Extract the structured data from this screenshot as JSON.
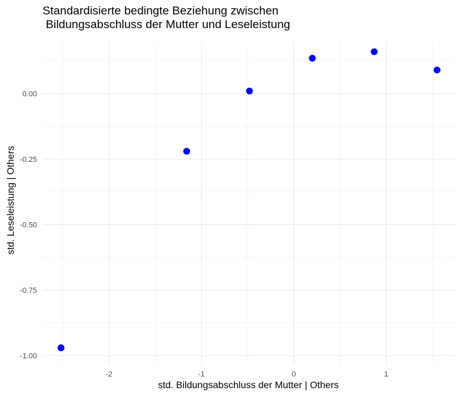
{
  "chart_data": {
    "type": "scatter",
    "title": "Standardisierte bedingte Beziehung zwischen\n Bildungsabschluss der Mutter und Leseleistung",
    "xlabel": "std. Bildungsabschluss der Mutter | Others",
    "ylabel": "std. Leseleistung | Others",
    "xlim": [
      -2.72,
      1.75
    ],
    "ylim": [
      -1.035,
      0.195
    ],
    "x_ticks": [
      -2,
      -1,
      0,
      1
    ],
    "x_tick_labels": [
      "-2",
      "-1",
      "0",
      "1"
    ],
    "y_ticks": [
      -1.0,
      -0.75,
      -0.5,
      -0.25,
      0.0
    ],
    "y_tick_labels": [
      "-1.00",
      "-0.75",
      "-0.50",
      "-0.25",
      "0.00"
    ],
    "grid": true,
    "point_color": "#0000ff",
    "points": [
      {
        "x": -2.52,
        "y": -0.97
      },
      {
        "x": -1.16,
        "y": -0.22
      },
      {
        "x": -0.48,
        "y": 0.01
      },
      {
        "x": 0.2,
        "y": 0.135
      },
      {
        "x": 0.87,
        "y": 0.16
      },
      {
        "x": 1.55,
        "y": 0.09
      }
    ]
  }
}
